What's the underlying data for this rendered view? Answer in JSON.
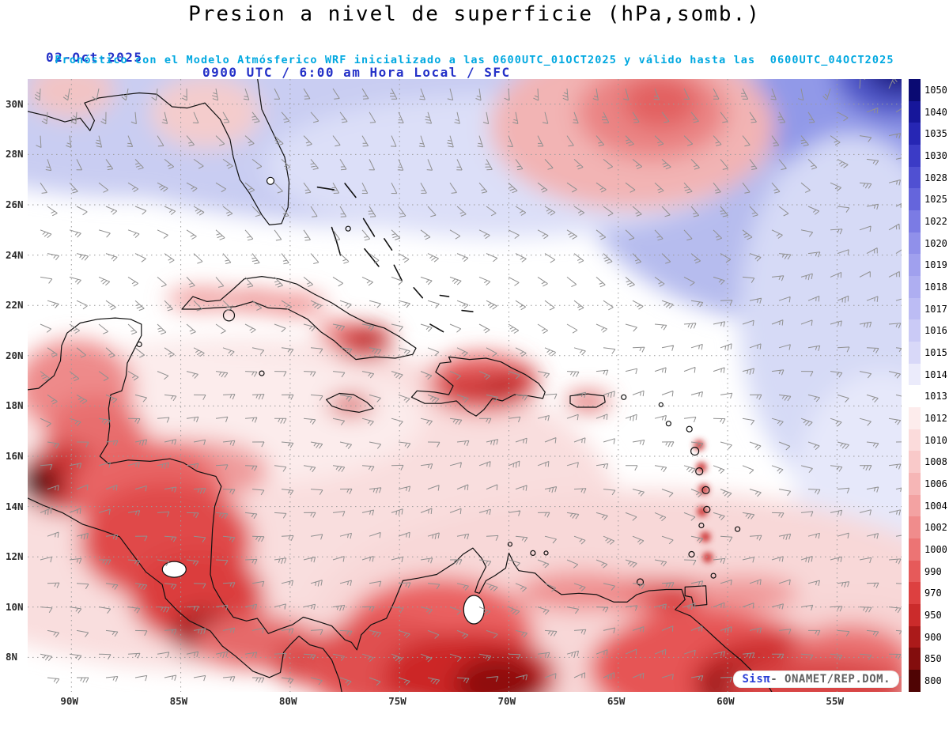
{
  "header": {
    "title": "Presion a nivel de superficie (hPa,somb.)",
    "date": "02-Oct-2025",
    "time_line": "0900 UTC / 6:00 am Hora Local / SFC",
    "forecast_line": "Pronóstico con el Modelo Atmósferico WRF inicializado a las 0600UTC_01OCT2025 y válido hasta las  0600UTC_04OCT2025"
  },
  "colors": {
    "title": "#000000",
    "date_line": "#2431c8",
    "forecast_line": "#00a8e0",
    "axis_labels": "#2a2a2a",
    "wind_barbs": "#909090",
    "coastline": "#111111",
    "credit_brand": "#2a3fd6",
    "credit_text": "#606060"
  },
  "map": {
    "lat_labels": [
      "30N",
      "28N",
      "26N",
      "24N",
      "22N",
      "20N",
      "18N",
      "16N",
      "14N",
      "12N",
      "10N",
      "8N"
    ],
    "lon_labels": [
      "90W",
      "85W",
      "80W",
      "75W",
      "70W",
      "65W",
      "60W",
      "55W"
    ]
  },
  "colorbar": {
    "unit": "hPa",
    "levels": [
      {
        "value": "1050",
        "color": "#0a0a72"
      },
      {
        "value": "1040",
        "color": "#16169a"
      },
      {
        "value": "1035",
        "color": "#2626b4"
      },
      {
        "value": "1030",
        "color": "#3b3bc6"
      },
      {
        "value": "1028",
        "color": "#5050d2"
      },
      {
        "value": "1025",
        "color": "#6565dc"
      },
      {
        "value": "1022",
        "color": "#7b7be4"
      },
      {
        "value": "1020",
        "color": "#9090ea"
      },
      {
        "value": "1019",
        "color": "#a0a0ee"
      },
      {
        "value": "1018",
        "color": "#aeaef1"
      },
      {
        "value": "1017",
        "color": "#bcbcf4"
      },
      {
        "value": "1016",
        "color": "#cacaf6"
      },
      {
        "value": "1015",
        "color": "#d8d8f8"
      },
      {
        "value": "1014",
        "color": "#ebebfb"
      },
      {
        "value": "1013",
        "color": "#ffffff"
      },
      {
        "value": "1012",
        "color": "#fdecec"
      },
      {
        "value": "1010",
        "color": "#fbdbdb"
      },
      {
        "value": "1008",
        "color": "#f9c9c9"
      },
      {
        "value": "1006",
        "color": "#f6b6b6"
      },
      {
        "value": "1004",
        "color": "#f3a2a2"
      },
      {
        "value": "1002",
        "color": "#f08c8c"
      },
      {
        "value": "1000",
        "color": "#ec7474"
      },
      {
        "value": "990",
        "color": "#e65a5a"
      },
      {
        "value": "970",
        "color": "#dd4040"
      },
      {
        "value": "950",
        "color": "#cb2b2b"
      },
      {
        "value": "900",
        "color": "#ab1a1a"
      },
      {
        "value": "850",
        "color": "#830d0d"
      },
      {
        "value": "800",
        "color": "#4f0404"
      }
    ]
  },
  "credit": {
    "brand": "Sisπ",
    "rest": "- ONAMET/REP.DOM."
  },
  "chart_data": {
    "type": "heatmap",
    "title": "Presion a nivel de superficie (hPa,somb.)",
    "x_ticks": [
      "90W",
      "85W",
      "80W",
      "75W",
      "70W",
      "65W",
      "60W",
      "55W"
    ],
    "y_ticks": [
      "30N",
      "28N",
      "26N",
      "24N",
      "22N",
      "20N",
      "18N",
      "16N",
      "14N",
      "12N",
      "10N",
      "8N"
    ],
    "colorbar_levels_hpa": [
      1050,
      1040,
      1035,
      1030,
      1028,
      1025,
      1022,
      1020,
      1019,
      1018,
      1017,
      1016,
      1015,
      1014,
      1013,
      1012,
      1010,
      1008,
      1006,
      1004,
      1002,
      1000,
      990,
      970,
      950,
      900,
      850,
      800
    ],
    "legend_position": "right",
    "grid": "dotted",
    "overlay": "wind barbs (surface)"
  }
}
